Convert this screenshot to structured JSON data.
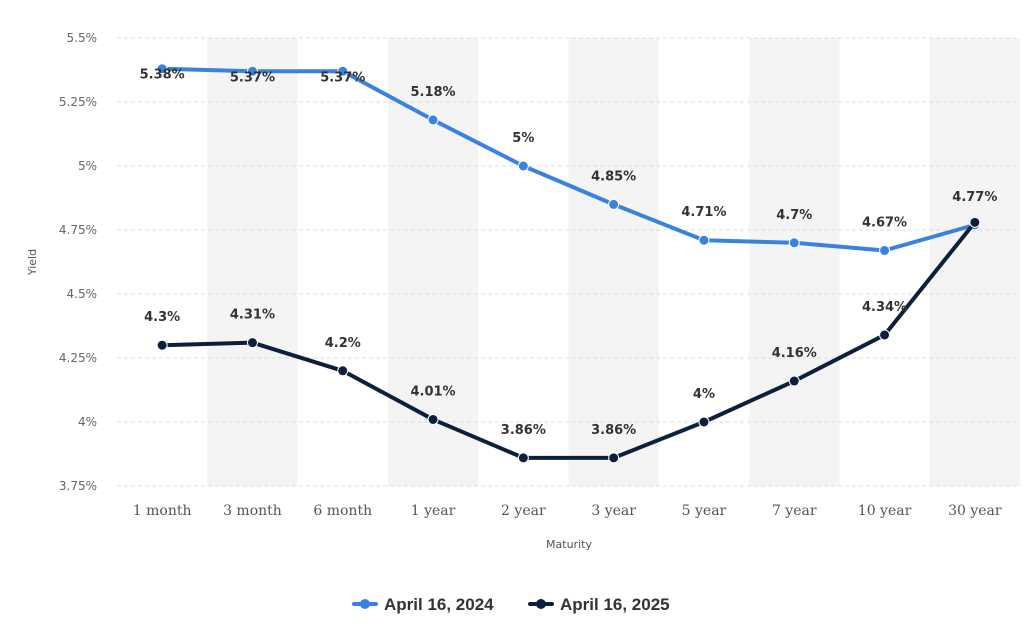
{
  "chart_data": {
    "type": "line",
    "title": "",
    "xlabel": "Maturity",
    "ylabel": "Yield",
    "categories": [
      "1 month",
      "3 month",
      "6 month",
      "1 year",
      "2 year",
      "3 year",
      "5 year",
      "7 year",
      "10 year",
      "30 year"
    ],
    "yticks": [
      "3.75%",
      "4%",
      "4.25%",
      "4.5%",
      "4.75%",
      "5%",
      "5.25%",
      "5.5%"
    ],
    "ylim": [
      3.75,
      5.5
    ],
    "grid": true,
    "legend_position": "bottom-center",
    "series": [
      {
        "name": "April 16, 2024",
        "color": "#3a82e0",
        "values": [
          5.38,
          5.37,
          5.37,
          5.18,
          5.0,
          4.85,
          4.71,
          4.7,
          4.67,
          4.77
        ],
        "labels": [
          "5.38%",
          "5.37%",
          "5.37%",
          "5.18%",
          "5%",
          "4.85%",
          "4.71%",
          "4.7%",
          "4.67%",
          "4.77%"
        ]
      },
      {
        "name": "April 16, 2025",
        "color": "#0c1f3d",
        "values": [
          4.3,
          4.31,
          4.2,
          4.01,
          3.86,
          3.86,
          4.0,
          4.16,
          4.34,
          4.78
        ],
        "labels": [
          "4.3%",
          "4.31%",
          "4.2%",
          "4.01%",
          "3.86%",
          "3.86%",
          "4%",
          "4.16%",
          "4.34%",
          ""
        ]
      }
    ]
  }
}
